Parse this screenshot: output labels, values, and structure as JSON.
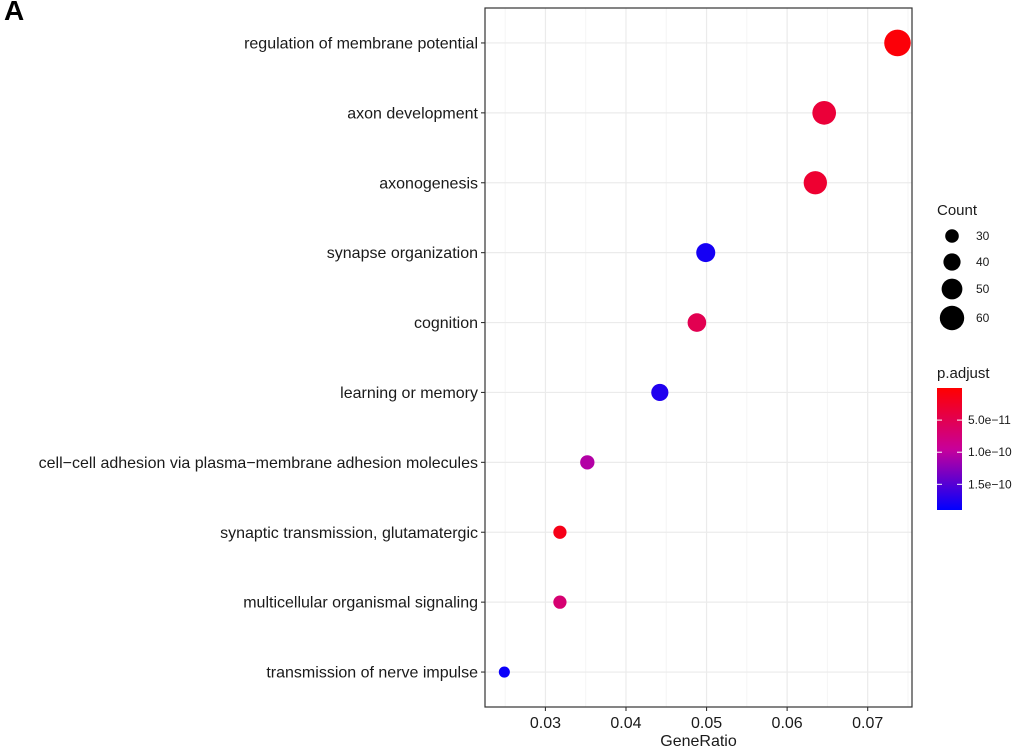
{
  "panel_label": "A",
  "chart_data": {
    "type": "scatter",
    "title": "",
    "xlabel": "GeneRatio",
    "ylabel": "",
    "xlim": [
      0.0225,
      0.0755
    ],
    "x_ticks": [
      0.03,
      0.04,
      0.05,
      0.06,
      0.07
    ],
    "x_tick_labels": [
      "0.03",
      "0.04",
      "0.05",
      "0.06",
      "0.07"
    ],
    "grid": true,
    "categories": [
      "regulation of membrane potential",
      "axon development",
      "axonogenesis",
      "synapse organization",
      "cognition",
      "learning or memory",
      "cell−cell adhesion via plasma−membrane adhesion molecules",
      "synaptic transmission, glutamatergic",
      "multicellular organismal signaling",
      "transmission of nerve impulse"
    ],
    "points": [
      {
        "term": "regulation of membrane potential",
        "gene_ratio": 0.0737,
        "count": 66,
        "p_adjust": 5e-12
      },
      {
        "term": "axon development",
        "gene_ratio": 0.0646,
        "count": 58,
        "p_adjust": 3.5e-11
      },
      {
        "term": "axonogenesis",
        "gene_ratio": 0.0635,
        "count": 57,
        "p_adjust": 3e-11
      },
      {
        "term": "synapse organization",
        "gene_ratio": 0.0499,
        "count": 45,
        "p_adjust": 1.8e-10
      },
      {
        "term": "cognition",
        "gene_ratio": 0.0488,
        "count": 44,
        "p_adjust": 5e-11
      },
      {
        "term": "learning or memory",
        "gene_ratio": 0.0442,
        "count": 40,
        "p_adjust": 1.75e-10
      },
      {
        "term": "cell−cell adhesion via plasma−membrane adhesion molecules",
        "gene_ratio": 0.0352,
        "count": 32,
        "p_adjust": 1.05e-10
      },
      {
        "term": "synaptic transmission, glutamatergic",
        "gene_ratio": 0.0318,
        "count": 29,
        "p_adjust": 1.5e-11
      },
      {
        "term": "multicellular organismal signaling",
        "gene_ratio": 0.0318,
        "count": 29,
        "p_adjust": 7e-11
      },
      {
        "term": "transmission of nerve impulse",
        "gene_ratio": 0.0249,
        "count": 23,
        "p_adjust": 1.85e-10
      }
    ],
    "size_legend": {
      "title": "Count",
      "values": [
        30,
        40,
        50,
        60
      ],
      "labels": [
        "30",
        "40",
        "50",
        "60"
      ]
    },
    "color_legend": {
      "title": "p.adjust",
      "range": [
        0,
        1.9e-10
      ],
      "ticks": [
        5e-11,
        1e-10,
        1.5e-10
      ],
      "tick_labels": [
        "5.0e−11",
        "1.0e−10",
        "1.5e−10"
      ],
      "low_color": "#ff0000",
      "high_color": "#0000ff"
    },
    "colors": {
      "panel_border": "#333333",
      "grid_major": "#ebebeb",
      "grid_minor": "#f5f5f5"
    }
  }
}
